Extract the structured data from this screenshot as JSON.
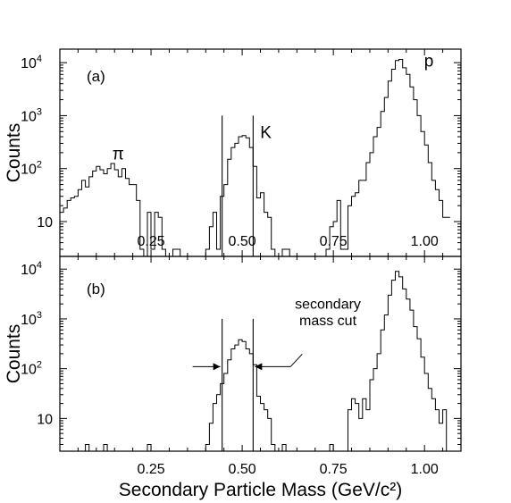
{
  "chart_data": [
    {
      "type": "histogram",
      "panel": "(a)",
      "xlabel": "",
      "ylabel": "Counts",
      "xlim": [
        0.0,
        1.1
      ],
      "ylim_log": [
        2.2,
        18000
      ],
      "x_ticks": [
        0.25,
        0.5,
        0.75,
        1.0
      ],
      "x_tick_labels": [
        "0.25",
        "0.50",
        "0.75",
        "1.00"
      ],
      "y_tick_labels": [
        {
          "base": "10",
          "exp": "4",
          "value": 10000
        },
        {
          "base": "10",
          "exp": "3",
          "value": 1000
        },
        {
          "base": "10",
          "exp": "2",
          "value": 100
        },
        {
          "base": "10",
          "exp": "",
          "value": 10
        }
      ],
      "annotations": [
        {
          "text": "π",
          "x": 0.16,
          "y": 150
        },
        {
          "text": "K",
          "x": 0.565,
          "y": 380
        },
        {
          "text": "p",
          "x": 1.012,
          "y": 8500
        }
      ],
      "cut_lines": [
        0.445,
        0.53
      ],
      "histogram": {
        "bin_width": 0.01,
        "start": 0.0,
        "counts": [
          15,
          18,
          25,
          28,
          30,
          40,
          60,
          45,
          70,
          90,
          110,
          95,
          80,
          100,
          125,
          95,
          70,
          100,
          65,
          50,
          50,
          25,
          3,
          0,
          15,
          3,
          15,
          12,
          3,
          0,
          0,
          3,
          3,
          0,
          0,
          0,
          0,
          0,
          0,
          0,
          3,
          8,
          15,
          3,
          30,
          50,
          150,
          250,
          300,
          400,
          420,
          380,
          250,
          110,
          28,
          35,
          15,
          12,
          3,
          0,
          0,
          3,
          3,
          0,
          0,
          0,
          0,
          0,
          0,
          0,
          0,
          0,
          0,
          3,
          8,
          10,
          25,
          3,
          3,
          20,
          30,
          35,
          60,
          60,
          130,
          200,
          400,
          600,
          1200,
          2200,
          4500,
          7500,
          11000,
          11500,
          8000,
          6000,
          3500,
          2000,
          1000,
          500,
          280,
          130,
          60,
          40,
          25,
          12,
          12
        ],
        "points": [
          [
            0.0,
            15
          ],
          [
            0.01,
            18
          ],
          [
            0.02,
            25
          ],
          [
            0.03,
            28
          ],
          [
            0.04,
            30
          ],
          [
            0.05,
            40
          ],
          [
            0.06,
            60
          ],
          [
            0.07,
            45
          ],
          [
            0.08,
            70
          ],
          [
            0.09,
            90
          ],
          [
            0.1,
            110
          ],
          [
            0.11,
            95
          ],
          [
            0.12,
            80
          ],
          [
            0.13,
            100
          ],
          [
            0.14,
            125
          ],
          [
            0.15,
            95
          ],
          [
            0.16,
            70
          ],
          [
            0.17,
            100
          ],
          [
            0.18,
            65
          ],
          [
            0.19,
            50
          ],
          [
            0.2,
            50
          ],
          [
            0.21,
            25
          ],
          [
            0.22,
            3
          ],
          [
            0.23,
            0
          ],
          [
            0.24,
            15
          ],
          [
            0.25,
            3
          ],
          [
            0.26,
            15
          ],
          [
            0.27,
            12
          ],
          [
            0.28,
            3
          ],
          [
            0.29,
            0
          ],
          [
            0.3,
            0
          ],
          [
            0.31,
            3
          ],
          [
            0.32,
            3
          ],
          [
            0.33,
            0
          ],
          [
            0.34,
            0
          ],
          [
            0.35,
            0
          ],
          [
            0.36,
            0
          ],
          [
            0.37,
            0
          ],
          [
            0.38,
            0
          ],
          [
            0.39,
            0
          ],
          [
            0.4,
            3
          ],
          [
            0.41,
            8
          ],
          [
            0.42,
            15
          ],
          [
            0.43,
            3
          ],
          [
            0.44,
            30
          ],
          [
            0.45,
            50
          ],
          [
            0.46,
            150
          ],
          [
            0.47,
            250
          ],
          [
            0.48,
            300
          ],
          [
            0.49,
            400
          ],
          [
            0.5,
            420
          ],
          [
            0.51,
            380
          ],
          [
            0.52,
            250
          ],
          [
            0.53,
            110
          ],
          [
            0.54,
            28
          ],
          [
            0.55,
            35
          ],
          [
            0.56,
            15
          ],
          [
            0.57,
            12
          ],
          [
            0.58,
            3
          ],
          [
            0.59,
            0
          ],
          [
            0.6,
            0
          ],
          [
            0.61,
            3
          ],
          [
            0.62,
            3
          ],
          [
            0.63,
            0
          ],
          [
            0.64,
            0
          ],
          [
            0.65,
            0
          ],
          [
            0.66,
            0
          ],
          [
            0.67,
            0
          ],
          [
            0.68,
            0
          ],
          [
            0.69,
            0
          ],
          [
            0.7,
            0
          ],
          [
            0.71,
            0
          ],
          [
            0.72,
            0
          ],
          [
            0.73,
            3
          ],
          [
            0.74,
            8
          ],
          [
            0.75,
            10
          ],
          [
            0.76,
            25
          ],
          [
            0.77,
            3
          ],
          [
            0.78,
            3
          ],
          [
            0.79,
            20
          ],
          [
            0.8,
            30
          ],
          [
            0.81,
            35
          ],
          [
            0.82,
            60
          ],
          [
            0.83,
            60
          ],
          [
            0.84,
            130
          ],
          [
            0.85,
            200
          ],
          [
            0.86,
            400
          ],
          [
            0.87,
            600
          ],
          [
            0.88,
            1200
          ],
          [
            0.89,
            2200
          ],
          [
            0.9,
            4500
          ],
          [
            0.91,
            7500
          ],
          [
            0.92,
            11000
          ],
          [
            0.93,
            11500
          ],
          [
            0.94,
            8000
          ],
          [
            0.95,
            6000
          ],
          [
            0.96,
            3500
          ],
          [
            0.97,
            2000
          ],
          [
            0.98,
            1000
          ],
          [
            0.99,
            500
          ],
          [
            1.0,
            280
          ],
          [
            1.01,
            130
          ],
          [
            1.02,
            60
          ],
          [
            1.03,
            40
          ],
          [
            1.04,
            25
          ],
          [
            1.05,
            12
          ],
          [
            1.06,
            12
          ]
        ]
      }
    },
    {
      "type": "histogram",
      "panel": "(b)",
      "xlabel": "Secondary Particle Mass (GeV/c²)",
      "ylabel": "Counts",
      "xlim": [
        0.0,
        1.1
      ],
      "ylim_log": [
        2.2,
        18000
      ],
      "x_ticks": [
        0.25,
        0.5,
        0.75,
        1.0
      ],
      "x_tick_labels": [
        "0.25",
        "0.50",
        "0.75",
        "1.00"
      ],
      "y_tick_labels": [
        {
          "base": "10",
          "exp": "4",
          "value": 10000
        },
        {
          "base": "10",
          "exp": "3",
          "value": 1000
        },
        {
          "base": "10",
          "exp": "2",
          "value": 100
        },
        {
          "base": "10",
          "exp": "",
          "value": 10
        }
      ],
      "annotations": [
        {
          "text": "secondary",
          "x": 0.735,
          "y": 1600
        },
        {
          "text": "mass cut",
          "x": 0.735,
          "y": 750
        }
      ],
      "cut_lines": [
        0.445,
        0.53
      ],
      "histogram": {
        "bin_width": 0.01,
        "start": 0.0,
        "counts": [
          0,
          0,
          0,
          0,
          0,
          0,
          0,
          3,
          0,
          0,
          0,
          0,
          3,
          0,
          0,
          0,
          0,
          0,
          0,
          0,
          0,
          0,
          0,
          0,
          3,
          0,
          0,
          0,
          0,
          0,
          0,
          0,
          0,
          0,
          0,
          0,
          0,
          0,
          0,
          0,
          3,
          8,
          20,
          30,
          50,
          80,
          150,
          250,
          300,
          380,
          350,
          250,
          200,
          120,
          28,
          20,
          15,
          10,
          3,
          0,
          0,
          3,
          0,
          0,
          0,
          0,
          0,
          0,
          0,
          0,
          0,
          0,
          0,
          0,
          3,
          0,
          0,
          0,
          0,
          15,
          25,
          20,
          10,
          25,
          15,
          60,
          100,
          200,
          600,
          1200,
          3000,
          6000,
          9000,
          7000,
          4000,
          2500,
          1500,
          700,
          400,
          170,
          80,
          40,
          25,
          15,
          8,
          15,
          0
        ],
        "points": [
          [
            0.0,
            0
          ],
          [
            0.01,
            0
          ],
          [
            0.02,
            0
          ],
          [
            0.03,
            0
          ],
          [
            0.04,
            0
          ],
          [
            0.05,
            0
          ],
          [
            0.06,
            0
          ],
          [
            0.07,
            3
          ],
          [
            0.08,
            0
          ],
          [
            0.09,
            0
          ],
          [
            0.1,
            0
          ],
          [
            0.11,
            0
          ],
          [
            0.12,
            3
          ],
          [
            0.13,
            0
          ],
          [
            0.14,
            0
          ],
          [
            0.15,
            0
          ],
          [
            0.16,
            0
          ],
          [
            0.17,
            0
          ],
          [
            0.18,
            0
          ],
          [
            0.19,
            0
          ],
          [
            0.2,
            0
          ],
          [
            0.21,
            0
          ],
          [
            0.22,
            0
          ],
          [
            0.23,
            0
          ],
          [
            0.24,
            3
          ],
          [
            0.25,
            0
          ],
          [
            0.26,
            0
          ],
          [
            0.27,
            0
          ],
          [
            0.28,
            0
          ],
          [
            0.29,
            0
          ],
          [
            0.3,
            0
          ],
          [
            0.31,
            0
          ],
          [
            0.32,
            0
          ],
          [
            0.33,
            0
          ],
          [
            0.34,
            0
          ],
          [
            0.35,
            0
          ],
          [
            0.36,
            0
          ],
          [
            0.37,
            0
          ],
          [
            0.38,
            0
          ],
          [
            0.39,
            0
          ],
          [
            0.4,
            3
          ],
          [
            0.41,
            8
          ],
          [
            0.42,
            20
          ],
          [
            0.43,
            30
          ],
          [
            0.44,
            50
          ],
          [
            0.45,
            80
          ],
          [
            0.46,
            150
          ],
          [
            0.47,
            250
          ],
          [
            0.48,
            300
          ],
          [
            0.49,
            380
          ],
          [
            0.5,
            350
          ],
          [
            0.51,
            250
          ],
          [
            0.52,
            200
          ],
          [
            0.53,
            120
          ],
          [
            0.54,
            28
          ],
          [
            0.55,
            20
          ],
          [
            0.56,
            15
          ],
          [
            0.57,
            10
          ],
          [
            0.58,
            3
          ],
          [
            0.59,
            0
          ],
          [
            0.6,
            0
          ],
          [
            0.61,
            3
          ],
          [
            0.62,
            0
          ],
          [
            0.63,
            0
          ],
          [
            0.64,
            0
          ],
          [
            0.65,
            0
          ],
          [
            0.66,
            0
          ],
          [
            0.67,
            0
          ],
          [
            0.68,
            0
          ],
          [
            0.69,
            0
          ],
          [
            0.7,
            0
          ],
          [
            0.71,
            0
          ],
          [
            0.72,
            0
          ],
          [
            0.73,
            0
          ],
          [
            0.74,
            3
          ],
          [
            0.75,
            0
          ],
          [
            0.76,
            0
          ],
          [
            0.77,
            0
          ],
          [
            0.78,
            0
          ],
          [
            0.79,
            15
          ],
          [
            0.8,
            25
          ],
          [
            0.81,
            20
          ],
          [
            0.82,
            10
          ],
          [
            0.83,
            25
          ],
          [
            0.84,
            15
          ],
          [
            0.85,
            60
          ],
          [
            0.86,
            100
          ],
          [
            0.87,
            200
          ],
          [
            0.88,
            600
          ],
          [
            0.89,
            1200
          ],
          [
            0.9,
            3000
          ],
          [
            0.91,
            6000
          ],
          [
            0.92,
            9000
          ],
          [
            0.93,
            7000
          ],
          [
            0.94,
            4000
          ],
          [
            0.95,
            2500
          ],
          [
            0.96,
            1500
          ],
          [
            0.97,
            700
          ],
          [
            0.98,
            400
          ],
          [
            0.99,
            170
          ],
          [
            1.0,
            80
          ],
          [
            1.01,
            40
          ],
          [
            1.02,
            25
          ],
          [
            1.03,
            15
          ],
          [
            1.04,
            8
          ],
          [
            1.05,
            15
          ],
          [
            1.06,
            0
          ]
        ]
      }
    }
  ]
}
